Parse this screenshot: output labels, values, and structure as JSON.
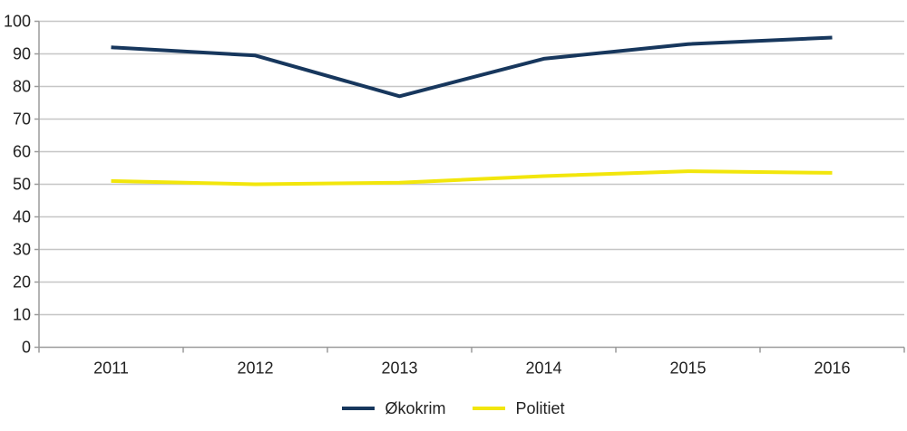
{
  "chart_data": {
    "type": "line",
    "title": "",
    "xlabel": "",
    "ylabel": "",
    "categories": [
      "2011",
      "2012",
      "2013",
      "2014",
      "2015",
      "2016"
    ],
    "series": [
      {
        "name": "Økokrim",
        "color": "#17375d",
        "values": [
          92,
          89.5,
          77,
          88.5,
          93,
          95
        ]
      },
      {
        "name": "Politiet",
        "color": "#f2e60c",
        "values": [
          51,
          50,
          50.5,
          52.5,
          54,
          53.5
        ]
      }
    ],
    "ylim": [
      0,
      100
    ],
    "yticks": [
      0,
      10,
      20,
      30,
      40,
      50,
      60,
      70,
      80,
      90,
      100
    ],
    "grid": "horizontal",
    "legend_position": "bottom",
    "colors": {
      "gridline": "#c6c6c6",
      "axis": "#9b9b9b",
      "text": "#222222",
      "background": "#ffffff"
    }
  }
}
